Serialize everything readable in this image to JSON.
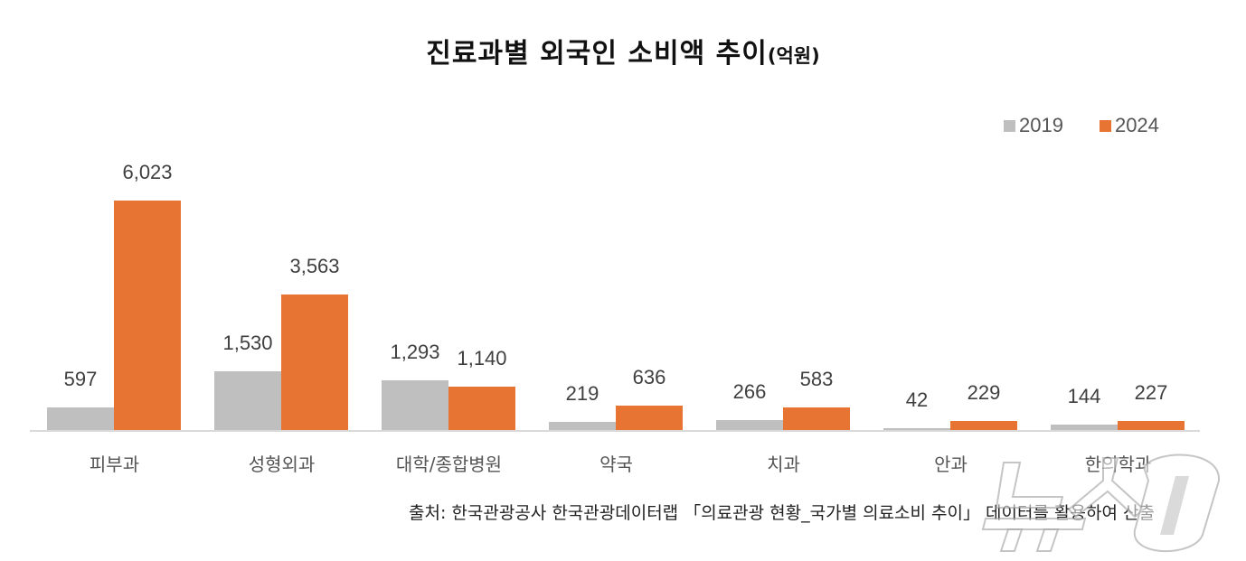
{
  "title": {
    "main": "진료과별 외국인 소비액 추이",
    "unit": "(억원)"
  },
  "legend": [
    {
      "label": "2019",
      "color": "#bfbfbf"
    },
    {
      "label": "2024",
      "color": "#e87434"
    }
  ],
  "source": "출처: 한국관광공사 한국관광데이터랩 「의료관광 현황_국가별 의료소비 추이」 데이터를 활용하여 산출",
  "watermark": "뉴스1",
  "chart_data": {
    "type": "bar",
    "title": "진료과별 외국인 소비액 추이(억원)",
    "xlabel": "",
    "ylabel": "억원",
    "categories": [
      "피부과",
      "성형외과",
      "대학/종합병원",
      "약국",
      "치과",
      "안과",
      "한의학과"
    ],
    "series": [
      {
        "name": "2019",
        "color": "#bfbfbf",
        "values": [
          597,
          1530,
          1293,
          219,
          266,
          42,
          144
        ],
        "labels": [
          "597",
          "1,530",
          "1,293",
          "219",
          "266",
          "42",
          "144"
        ]
      },
      {
        "name": "2024",
        "color": "#e87434",
        "values": [
          6023,
          3563,
          1140,
          636,
          583,
          229,
          227
        ],
        "labels": [
          "6,023",
          "3,563",
          "1,140",
          "636",
          "583",
          "229",
          "227"
        ]
      }
    ],
    "ylim": [
      0,
      6023
    ],
    "grid": false,
    "legend_position": "top-right",
    "data_labels": true
  }
}
